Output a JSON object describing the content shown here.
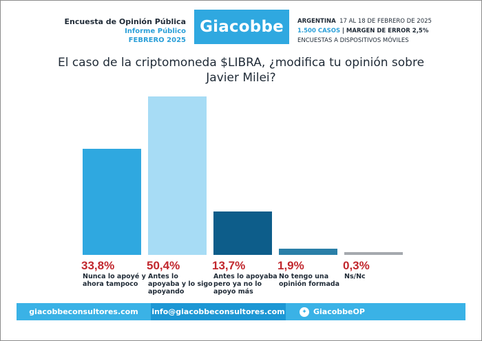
{
  "header": {
    "title": "Encuesta de Opinión Pública",
    "subtitle": "Informe Público",
    "date": "FEBRERO 2025",
    "brand": "Giacobbe",
    "country": "ARGENTINA",
    "field_dates": "17 AL 18 DE FEBRERO DE 2025",
    "cases": "1.500 CASOS",
    "margin": "| MARGEN DE ERROR 2,5%",
    "method": "ENCUESTAS A DISPOSITIVOS MÓVILES"
  },
  "question": {
    "line1": "El caso de la criptomoneda $LIBRA, ¿modifica tu opinión sobre",
    "line2": "Javier Milei?"
  },
  "chart_data": {
    "type": "bar",
    "title": "El caso de la criptomoneda $LIBRA, ¿modifica tu opinión sobre Javier Milei?",
    "categories": [
      "Nunca lo apoyé y ahora tampoco",
      "Antes lo apoyaba y lo sigo apoyando",
      "Antes lo apoyaba pero ya no lo apoyo más",
      "No tengo una opinión formada",
      "Ns/Nc"
    ],
    "values": [
      33.8,
      50.4,
      13.7,
      1.9,
      0.3
    ],
    "value_labels": [
      "33,8%",
      "50,4%",
      "13,7%",
      "1,9%",
      "0,3%"
    ],
    "label_lines": [
      [
        "Nunca lo apoyé y",
        "ahora tampoco"
      ],
      [
        "Antes lo",
        "apoyaba y lo sigo",
        "apoyando"
      ],
      [
        "Antes lo apoyaba",
        "pero ya no lo",
        "apoyo más"
      ],
      [
        "No tengo una",
        "opinión formada"
      ],
      [
        "Ns/Nc"
      ]
    ],
    "colors": [
      "#2fa8e0",
      "#a7dcf5",
      "#0d5d8a",
      "#2a7fa8",
      "#a5a9ae"
    ],
    "ylim": [
      0,
      50.4
    ],
    "xlabel": "",
    "ylabel": "",
    "grid": false,
    "legend": "none"
  },
  "footer": {
    "website": "giacobbeconsultores.com",
    "email": "info@giacobbeconsultores.com",
    "twitter_icon": "twitter-bird-icon",
    "twitter": "GiacobbeOP"
  }
}
